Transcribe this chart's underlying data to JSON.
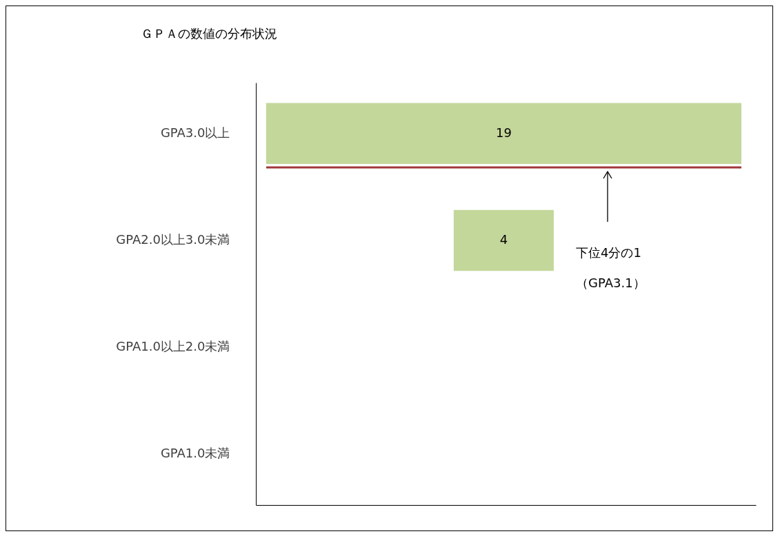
{
  "chart_data": {
    "type": "other",
    "title": "ＧＰＡの数値の分布状況",
    "categories": [
      "GPA3.0以上",
      "GPA2.0以上3.0未満",
      "GPA1.0以上2.0未満",
      "GPA1.0未満"
    ],
    "values": [
      19,
      4,
      null,
      null
    ],
    "color": "#c4d79b",
    "data_labels": true,
    "annotations": [
      "下位4分の1\n（GPA3.1）"
    ]
  }
}
